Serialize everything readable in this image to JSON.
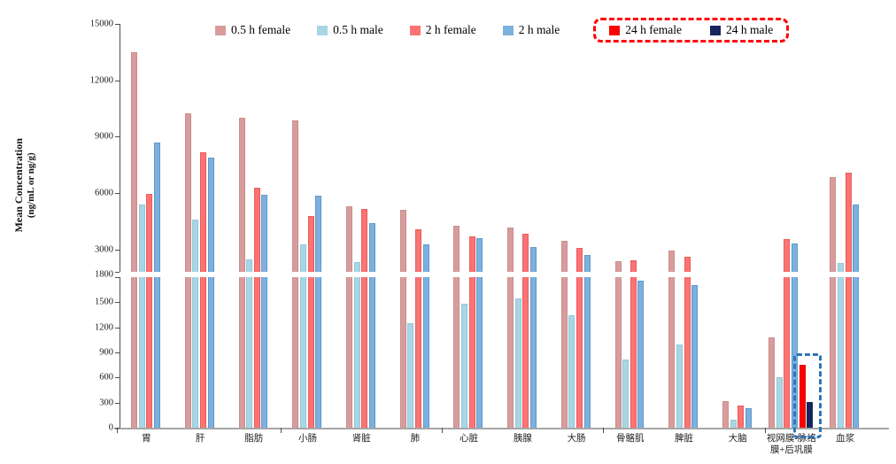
{
  "chart_data": {
    "type": "bar",
    "title": "",
    "ylabel_line1": "Mean Concentration",
    "ylabel_line2": "(ng/mL or ng/g)",
    "grid": false,
    "legend_position": "top",
    "categories": [
      "胃",
      "肝",
      "脂肪",
      "小肠",
      "肾脏",
      "肺",
      "心脏",
      "胰腺",
      "大肠",
      "骨骼肌",
      "脾脏",
      "大脑",
      "视网膜-脉络膜+后巩膜",
      "血浆"
    ],
    "axis_break": true,
    "upper_axis": {
      "min": 1800,
      "max": 15000,
      "ticks": [
        15000,
        12000,
        9000,
        6000,
        3000
      ]
    },
    "break_label": "1800",
    "lower_axis": {
      "min": 0,
      "max": 1800,
      "ticks": [
        1500,
        1200,
        900,
        600,
        300,
        0
      ]
    },
    "series": [
      {
        "name": "0.5 h female",
        "color": "#d99c9c",
        "border": "#c98c8c",
        "values": [
          13500,
          10250,
          10000,
          9850,
          5300,
          5100,
          4250,
          4150,
          3450,
          2350,
          2950,
          315,
          1080,
          6850
        ]
      },
      {
        "name": "0.5 h male",
        "color": "#a9d6e5",
        "border": "#93c6d8",
        "values": [
          5400,
          4600,
          2480,
          3250,
          2330,
          1250,
          1480,
          1550,
          1340,
          820,
          1000,
          100,
          600,
          2250
        ]
      },
      {
        "name": "2 h female",
        "color": "#fb7373",
        "border": "#e85c5c",
        "values": [
          5950,
          8150,
          6300,
          4750,
          5150,
          4050,
          3700,
          3850,
          3080,
          2400,
          2580,
          270,
          3550,
          7100
        ]
      },
      {
        "name": "2 h male",
        "color": "#7cb1de",
        "border": "#5e97cb",
        "values": [
          8700,
          7900,
          5900,
          5850,
          4370,
          3250,
          3600,
          3100,
          2700,
          1760,
          1700,
          230,
          3300,
          5400
        ]
      },
      {
        "name": "24 h female",
        "color": "#fe0000",
        "border": "#e00000",
        "values": [
          0,
          0,
          0,
          0,
          0,
          0,
          0,
          0,
          0,
          0,
          0,
          0,
          750,
          0
        ]
      },
      {
        "name": "24 h male",
        "color": "#16265c",
        "border": "#16265c",
        "values": [
          0,
          0,
          0,
          0,
          0,
          0,
          0,
          0,
          0,
          0,
          0,
          0,
          305,
          0
        ]
      }
    ],
    "highlights": {
      "legend_box": {
        "series": [
          "24 h female",
          "24 h male"
        ],
        "color": "#fe0000",
        "style": "dashed"
      },
      "chart_box": {
        "category": "视网膜-脉络膜+后巩膜",
        "series": [
          "24 h female",
          "24 h male"
        ],
        "color": "#2e75b6",
        "style": "dashed"
      }
    }
  }
}
